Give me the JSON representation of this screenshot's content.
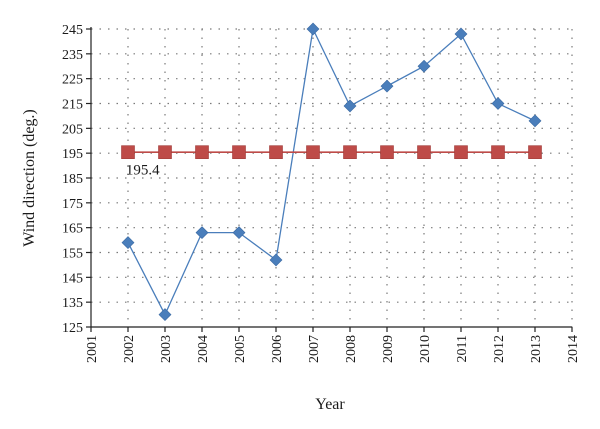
{
  "chart_data": {
    "type": "line",
    "title": "",
    "xlabel": "Year",
    "ylabel": "Wind direction (deg.)",
    "xlim": [
      2001,
      2014
    ],
    "ylim": [
      125,
      245
    ],
    "x_ticks": [
      2001,
      2002,
      2003,
      2004,
      2005,
      2006,
      2007,
      2008,
      2009,
      2010,
      2011,
      2012,
      2013,
      2014
    ],
    "y_ticks": [
      125,
      135,
      145,
      155,
      165,
      175,
      185,
      195,
      205,
      215,
      225,
      235,
      245
    ],
    "grid": "dotted horizontal and vertical",
    "legend": "none",
    "series": [
      {
        "color": "#4a7ebb",
        "marker": "diamond",
        "x": [
          2002,
          2003,
          2004,
          2005,
          2006,
          2007,
          2008,
          2009,
          2010,
          2011,
          2012,
          2013
        ],
        "values": [
          159,
          130,
          163,
          163,
          152,
          245,
          214,
          222,
          230,
          243,
          215,
          208
        ]
      },
      {
        "color": "#be4b48",
        "marker": "square",
        "x": [
          2002,
          2003,
          2004,
          2005,
          2006,
          2007,
          2008,
          2009,
          2010,
          2011,
          2012,
          2013
        ],
        "values": [
          195.4,
          195.4,
          195.4,
          195.4,
          195.4,
          195.4,
          195.4,
          195.4,
          195.4,
          195.4,
          195.4,
          195.4
        ]
      }
    ],
    "annotations": [
      {
        "text": "195.4",
        "x": 2002.4,
        "y": 186.5
      }
    ]
  }
}
